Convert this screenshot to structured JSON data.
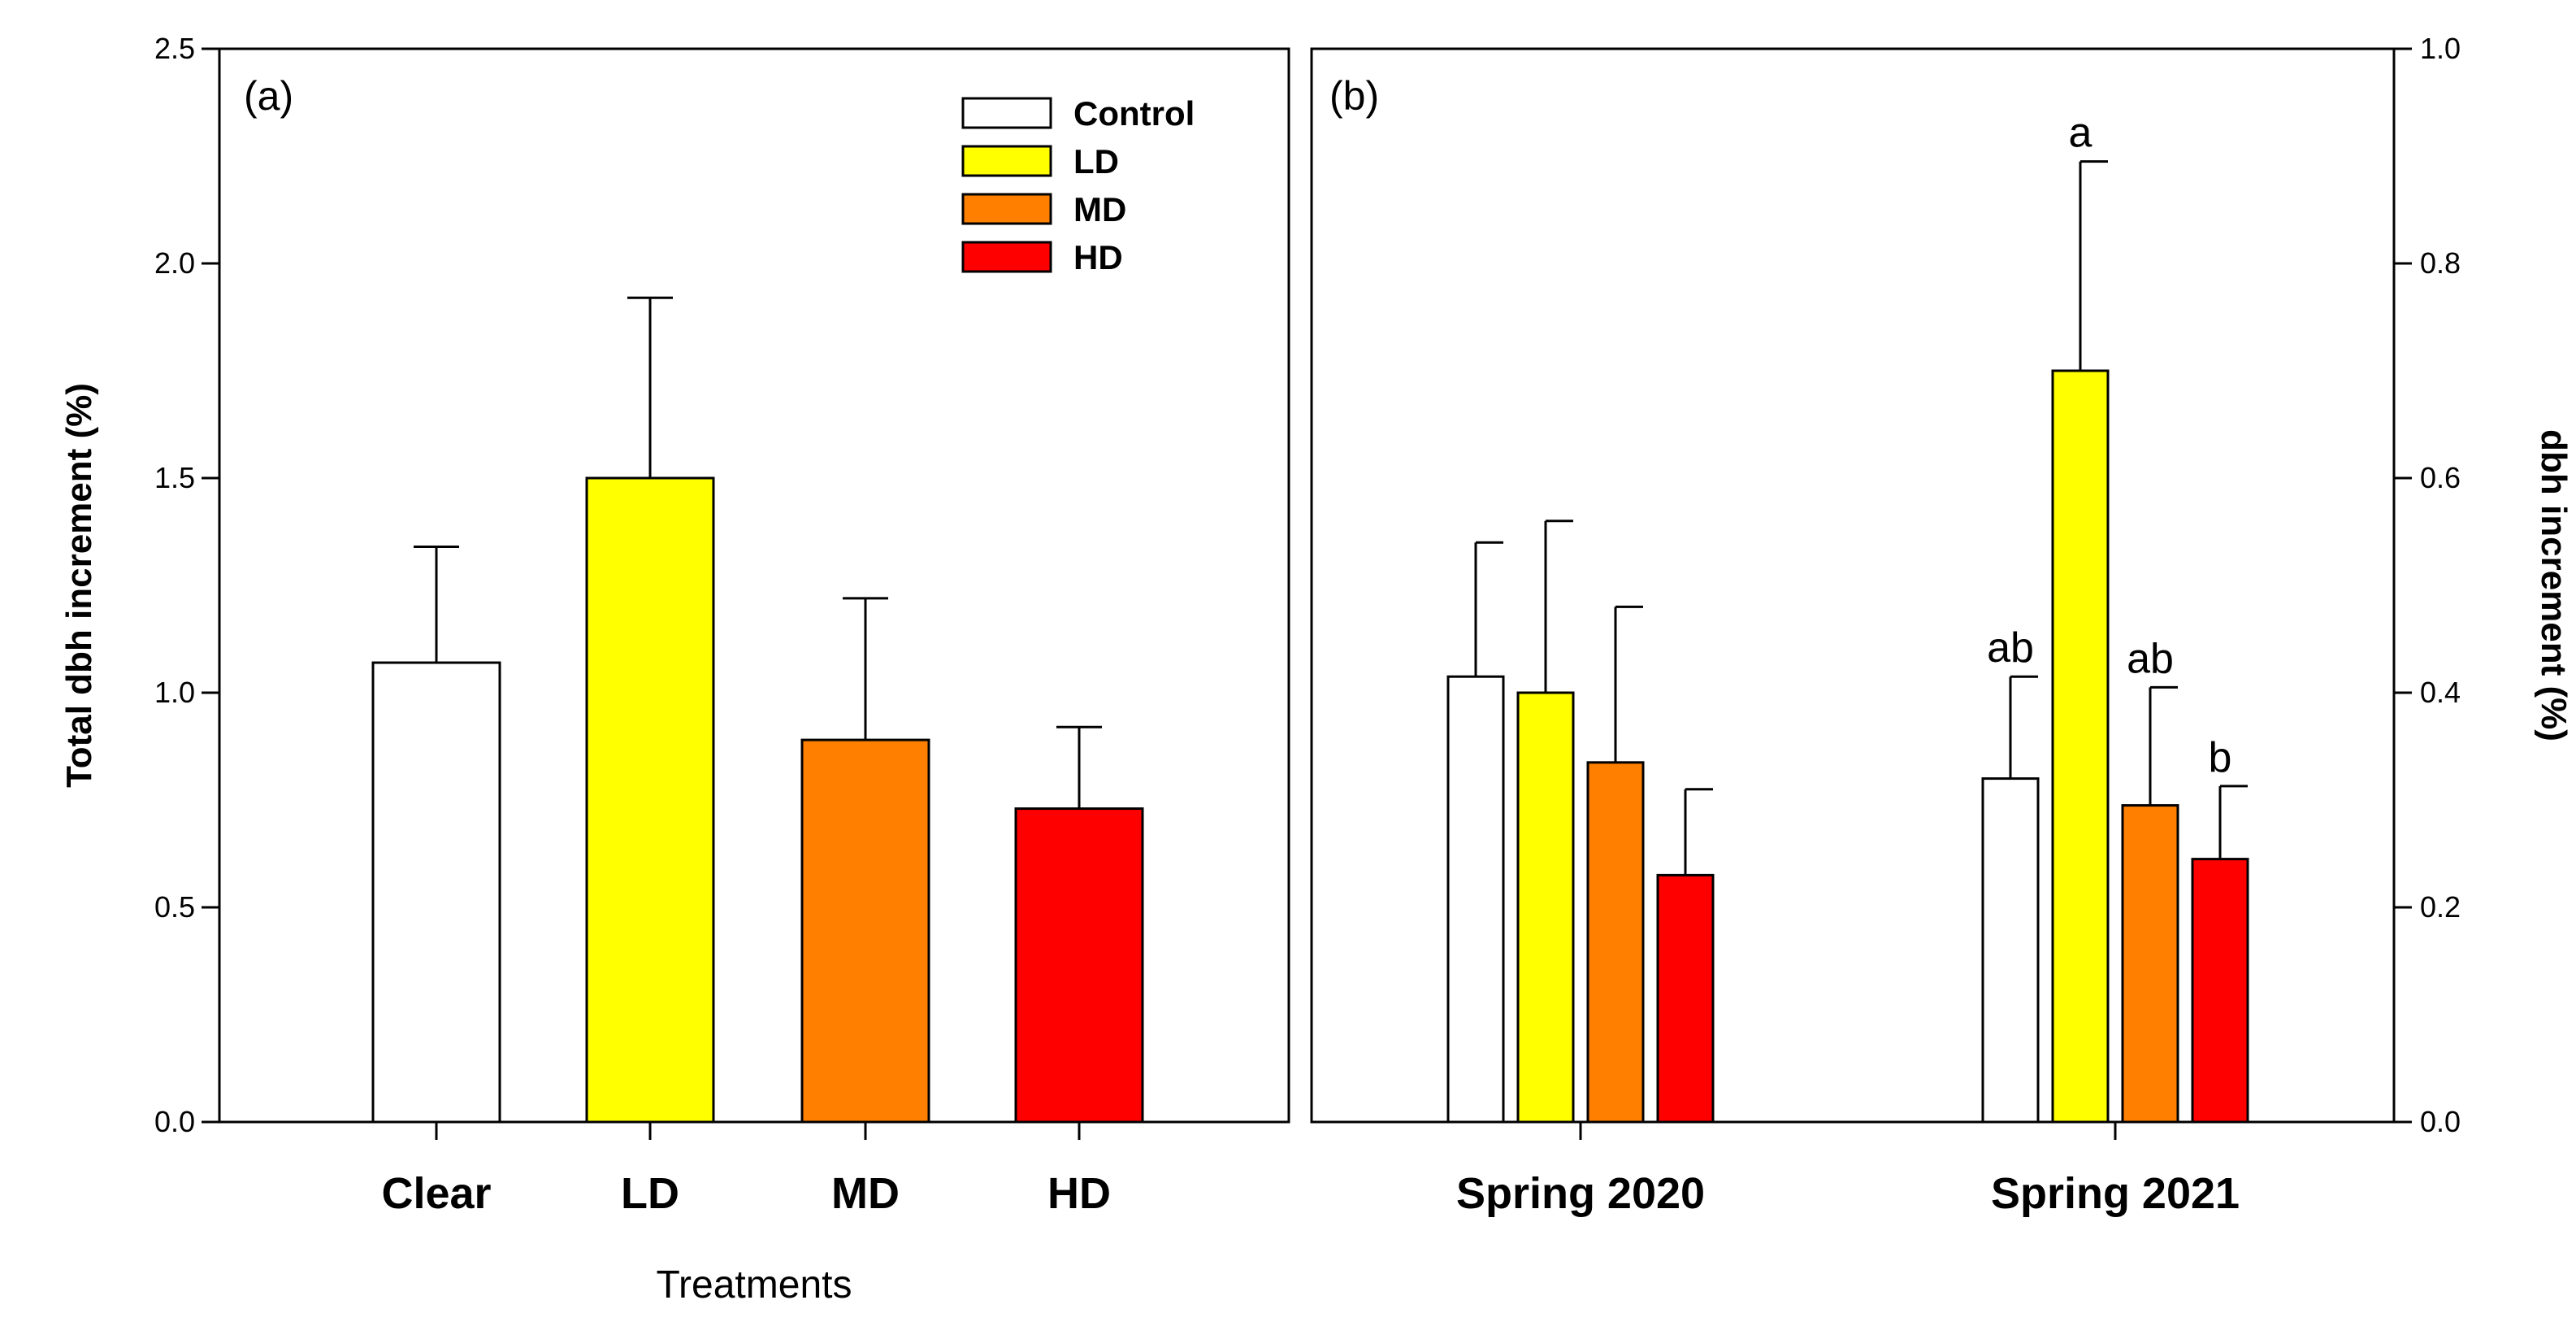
{
  "chart_data": [
    {
      "panel": "(a)",
      "type": "bar",
      "categories": [
        "Clear",
        "LD",
        "MD",
        "HD"
      ],
      "values": [
        1.07,
        1.5,
        0.89,
        0.73
      ],
      "errors": [
        0.27,
        0.42,
        0.33,
        0.19
      ],
      "colors": [
        "#ffffff",
        "#ffff00",
        "#ff8000",
        "#ff0000"
      ],
      "ylabel": "Total dbh increment (%)",
      "xlabel": "Treatments",
      "ylim": [
        0,
        2.5
      ],
      "yticks": [
        "0.0",
        "0.5",
        "1.0",
        "1.5",
        "2.0",
        "2.5"
      ],
      "legend": {
        "position": "top-right",
        "entries": [
          {
            "label": "Control",
            "color": "#ffffff"
          },
          {
            "label": "LD",
            "color": "#ffff00"
          },
          {
            "label": "MD",
            "color": "#ff8000"
          },
          {
            "label": "HD",
            "color": "#ff0000"
          }
        ]
      }
    },
    {
      "panel": "(b)",
      "type": "bar",
      "categories": [
        "Spring 2020",
        "Spring 2021"
      ],
      "ylabel": "dbh increment (%)",
      "ylim": [
        0,
        1.0
      ],
      "yticks": [
        "0.0",
        "0.2",
        "0.4",
        "0.6",
        "0.8",
        "1.0"
      ],
      "series": [
        {
          "name": "Control",
          "color": "#ffffff",
          "values": [
            0.415,
            0.32
          ],
          "errors": [
            0.125,
            0.095
          ],
          "labels": [
            "",
            "ab"
          ]
        },
        {
          "name": "LD",
          "color": "#ffff00",
          "values": [
            0.4,
            0.7
          ],
          "errors": [
            0.16,
            0.195
          ],
          "labels": [
            "",
            "a"
          ]
        },
        {
          "name": "MD",
          "color": "#ff8000",
          "values": [
            0.335,
            0.295
          ],
          "errors": [
            0.145,
            0.11
          ],
          "labels": [
            "",
            "ab"
          ]
        },
        {
          "name": "HD",
          "color": "#ff0000",
          "values": [
            0.23,
            0.245
          ],
          "errors": [
            0.08,
            0.068
          ],
          "labels": [
            "",
            "b"
          ]
        }
      ]
    }
  ]
}
